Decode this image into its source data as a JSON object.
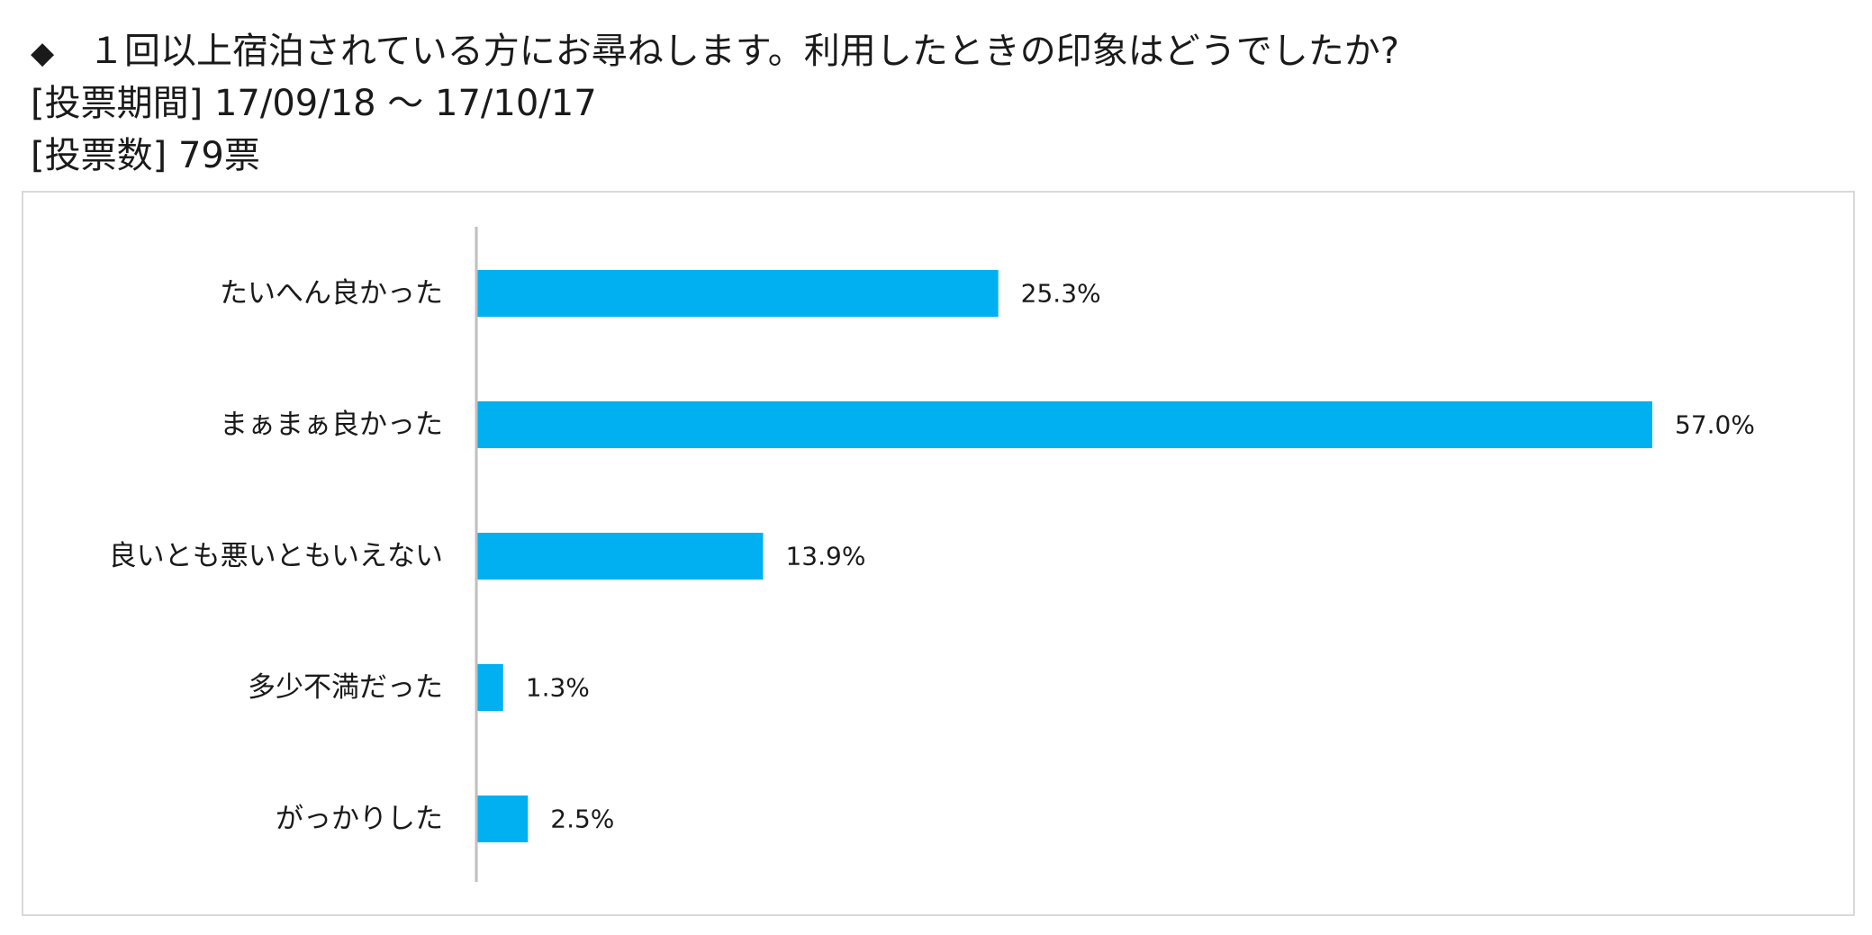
{
  "header": {
    "bullet": "◆",
    "question": "１回以上宿泊されている方にお尋ねします。利用したときの印象はどうでしたか?",
    "period_label": "[投票期間]",
    "period_value": "17/09/18 ～ 17/10/17",
    "votes_label": "[投票数]",
    "votes_value": "79票"
  },
  "chart_data": {
    "type": "bar",
    "orientation": "horizontal",
    "categories": [
      "たいへん良かった",
      "まぁまぁ良かった",
      "良いとも悪いともいえない",
      "多少不満だった",
      "がっかりした"
    ],
    "values": [
      25.3,
      57.0,
      13.9,
      1.3,
      2.5
    ],
    "value_labels": [
      "25.3%",
      "57.0%",
      "13.9%",
      "1.3%",
      "2.5%"
    ],
    "unit": "%",
    "xlim": [
      0,
      57.0
    ],
    "grid": false,
    "legend": "none",
    "bar_color": "#00b0f0",
    "axis_color": "#bfbfbf"
  }
}
